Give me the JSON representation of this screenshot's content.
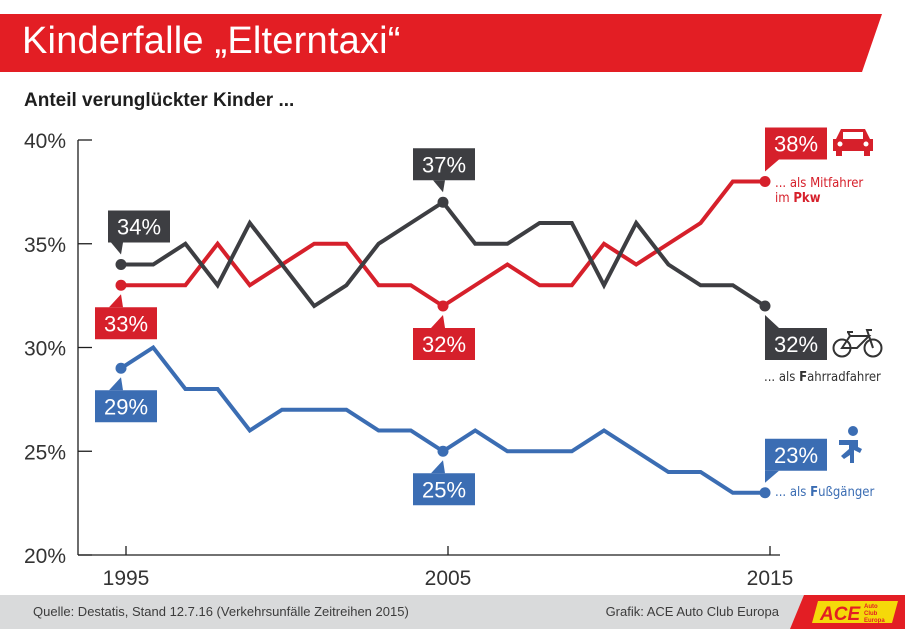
{
  "header": {
    "title": "Kinderfalle „Elterntaxi“",
    "subtitle": "Anteil verunglückter Kinder ..."
  },
  "colors": {
    "banner": "#e31e24",
    "car": "#d6202b",
    "bike": "#3d3e42",
    "pedestrian": "#3b6db3",
    "axis": "#1e1e1e",
    "footer": "#d9dadb"
  },
  "chart_data": {
    "type": "line",
    "title": "Kinderfalle „Elterntaxi“",
    "subtitle": "Anteil verunglückter Kinder ...",
    "xlabel": "",
    "ylabel": "",
    "x": [
      1995,
      1996,
      1997,
      1998,
      1999,
      2000,
      2001,
      2002,
      2003,
      2004,
      2005,
      2006,
      2007,
      2008,
      2009,
      2010,
      2011,
      2012,
      2013,
      2014,
      2015
    ],
    "xticks": [
      "1995",
      "2005",
      "2015"
    ],
    "yticks": [
      "20%",
      "25%",
      "30%",
      "35%",
      "40%"
    ],
    "ylim": [
      20,
      40
    ],
    "grid": false,
    "series": [
      {
        "name": "... als Mitfahrer im Pkw",
        "label_line1": "... als Mitfahrer",
        "label_line2_prefix": "im ",
        "label_line2_bold": "Pkw",
        "icon": "car-icon",
        "color_key": "car",
        "values": [
          33,
          33,
          33,
          35,
          33,
          34,
          35,
          35,
          33,
          33,
          32,
          33,
          34,
          33,
          33,
          35,
          34,
          35,
          36,
          38,
          38
        ],
        "callouts": [
          {
            "year": 1995,
            "text": "33%",
            "pos": "below"
          },
          {
            "year": 2005,
            "text": "32%",
            "pos": "below"
          },
          {
            "year": 2015,
            "text": "38%",
            "pos": "above"
          }
        ]
      },
      {
        "name": "... als Fahrradfahrer",
        "label_line1_prefix": "... als ",
        "label_line1_bold": "F",
        "label_line1_rest": "ahrradfahrer",
        "icon": "bicycle-icon",
        "color_key": "bike",
        "values": [
          34,
          34,
          35,
          33,
          36,
          34,
          32,
          33,
          35,
          36,
          37,
          35,
          35,
          36,
          36,
          33,
          36,
          34,
          33,
          33,
          32
        ],
        "callouts": [
          {
            "year": 1995,
            "text": "34%",
            "pos": "above"
          },
          {
            "year": 2005,
            "text": "37%",
            "pos": "above"
          },
          {
            "year": 2015,
            "text": "32%",
            "pos": "below"
          }
        ]
      },
      {
        "name": "... als Fußgänger",
        "label_line1_prefix": "... als ",
        "label_line1_bold": "F",
        "label_line1_rest": "ußgänger",
        "icon": "pedestrian-icon",
        "color_key": "pedestrian",
        "values": [
          29,
          30,
          28,
          28,
          26,
          27,
          27,
          27,
          26,
          26,
          25,
          26,
          25,
          25,
          25,
          26,
          25,
          24,
          24,
          23,
          23
        ],
        "callouts": [
          {
            "year": 1995,
            "text": "29%",
            "pos": "below"
          },
          {
            "year": 2005,
            "text": "25%",
            "pos": "below"
          },
          {
            "year": 2015,
            "text": "23%",
            "pos": "above"
          }
        ]
      }
    ]
  },
  "footer": {
    "source": "Quelle: Destatis, Stand 12.7.16 (Verkehrsunfälle Zeitreihen 2015)",
    "credit": "Grafik: ACE Auto Club Europa",
    "logo_text": "ACE",
    "logo_sub": [
      "Auto",
      "Club",
      "Europa"
    ]
  }
}
